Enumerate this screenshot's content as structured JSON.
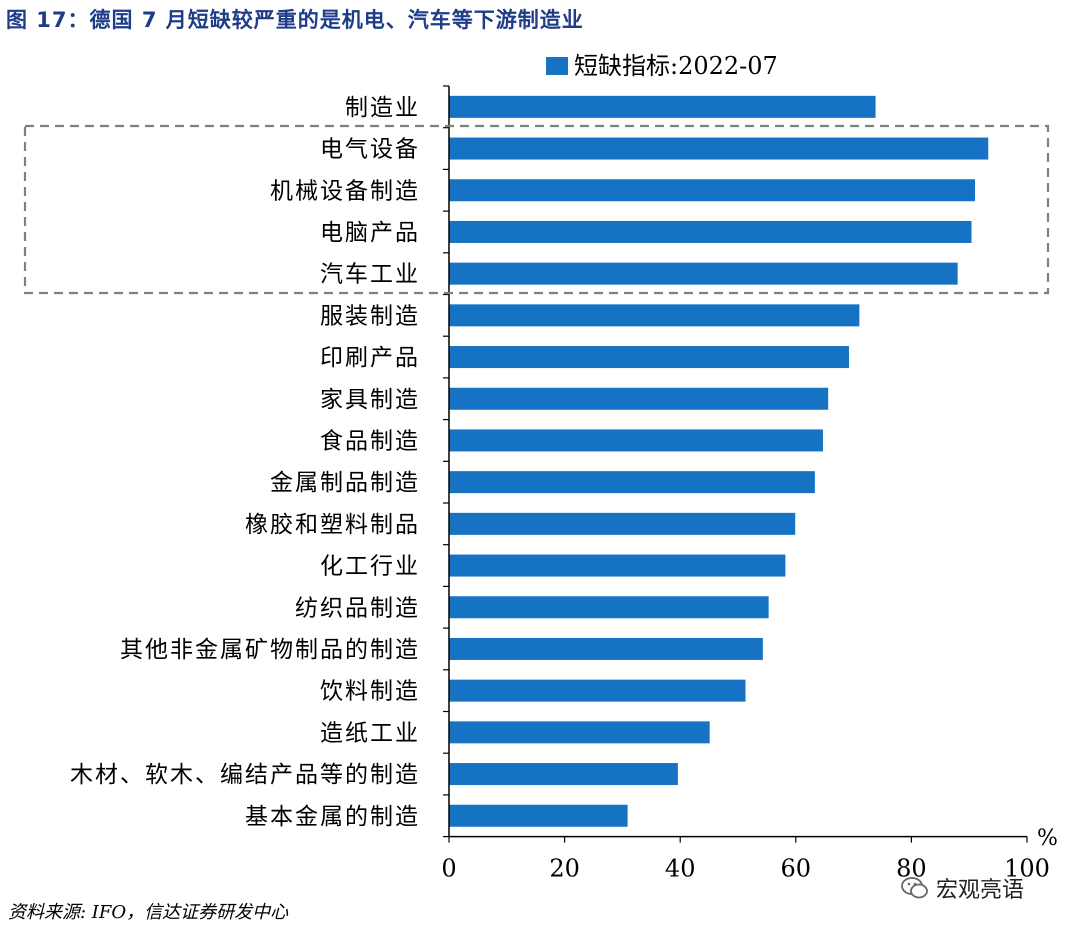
{
  "figure": {
    "title": "图 17：德国 7 月短缺较严重的是机电、汽车等下游制造业",
    "source": "资料来源: IFO，信达证券研发中心",
    "watermark": "宏观亮语"
  },
  "colors": {
    "bar": "#1672c2",
    "highlight_box": "#808080",
    "title": "#1f3c88"
  },
  "chart_data": {
    "type": "bar",
    "orientation": "horizontal",
    "categories": [
      "制造业",
      "电气设备",
      "机械设备制造",
      "电脑产品",
      "汽车工业",
      "服装制造",
      "印刷产品",
      "家具制造",
      "食品制造",
      "金属制品制造",
      "橡胶和塑料制品",
      "化工行业",
      "纺织品制造",
      "其他非金属矿物制品的制造",
      "饮料制造",
      "造纸工业",
      "木材、软木、编结产品等的制造",
      "基本金属的制造"
    ],
    "series": [
      {
        "name": "短缺指标:2022-07",
        "values": [
          73.8,
          93.3,
          91.0,
          90.4,
          88.0,
          71.0,
          69.2,
          65.6,
          64.7,
          63.3,
          59.9,
          58.2,
          55.3,
          54.3,
          51.3,
          45.1,
          39.6,
          30.9
        ]
      }
    ],
    "xlim": [
      0,
      100
    ],
    "xticks": [
      "0",
      "20",
      "40",
      "60",
      "80",
      "100"
    ],
    "x_unit": "%",
    "legend_position": "top",
    "highlight_categories": [
      "电气设备",
      "机械设备制造",
      "电脑产品",
      "汽车工业"
    ]
  }
}
